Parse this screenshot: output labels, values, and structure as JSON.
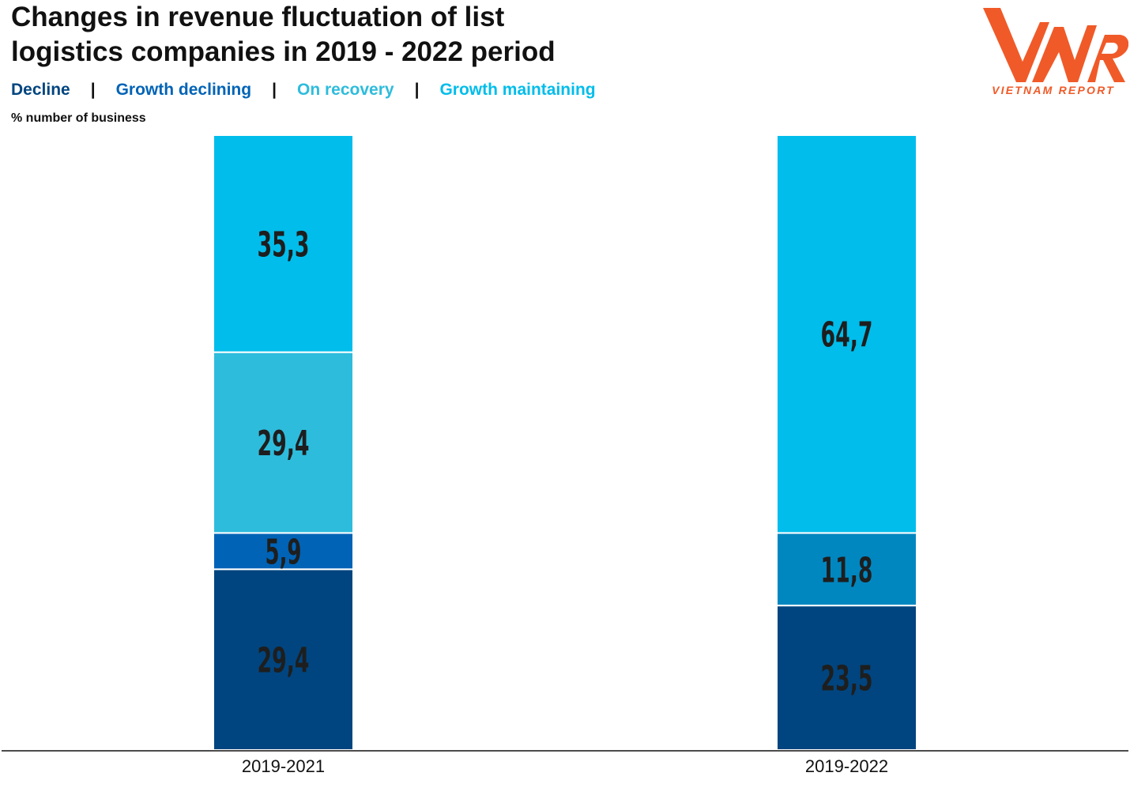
{
  "header": {
    "title_line1": "Changes in revenue fluctuation of list",
    "title_line2": "logistics companies in 2019 - 2022 period",
    "unit_label": "% number of business",
    "separator": "|"
  },
  "logo": {
    "text": "VIETNAM REPORT",
    "color": "#f05a28"
  },
  "chart_data": {
    "type": "bar",
    "stacked": true,
    "title": "Changes in revenue fluctuation of list logistics companies in 2019 - 2022 period",
    "ylabel": "% number of business",
    "ylim": [
      0,
      100
    ],
    "grid": false,
    "legend_position": "top-left",
    "categories": [
      "2019-2021",
      "2019-2022"
    ],
    "series": [
      {
        "name": "Decline",
        "color": "#00457f",
        "values": [
          29.4,
          23.5
        ],
        "labels": [
          "29,4",
          "23,5"
        ]
      },
      {
        "name": "Growth declining",
        "color": "#0063b6",
        "values": [
          5.9,
          0
        ],
        "labels": [
          "5,9",
          ""
        ]
      },
      {
        "name": "On recovery",
        "color": "#2ebcdc",
        "values": [
          29.4,
          11.8
        ],
        "labels": [
          "29,4",
          "11,8"
        ]
      },
      {
        "name": "Growth maintaining",
        "color": "#00bdeb",
        "values": [
          35.3,
          64.7
        ],
        "labels": [
          "35,3",
          "64,7"
        ]
      }
    ],
    "segment_color_overrides": {
      "1": {
        "2": "#0087c0"
      }
    }
  }
}
